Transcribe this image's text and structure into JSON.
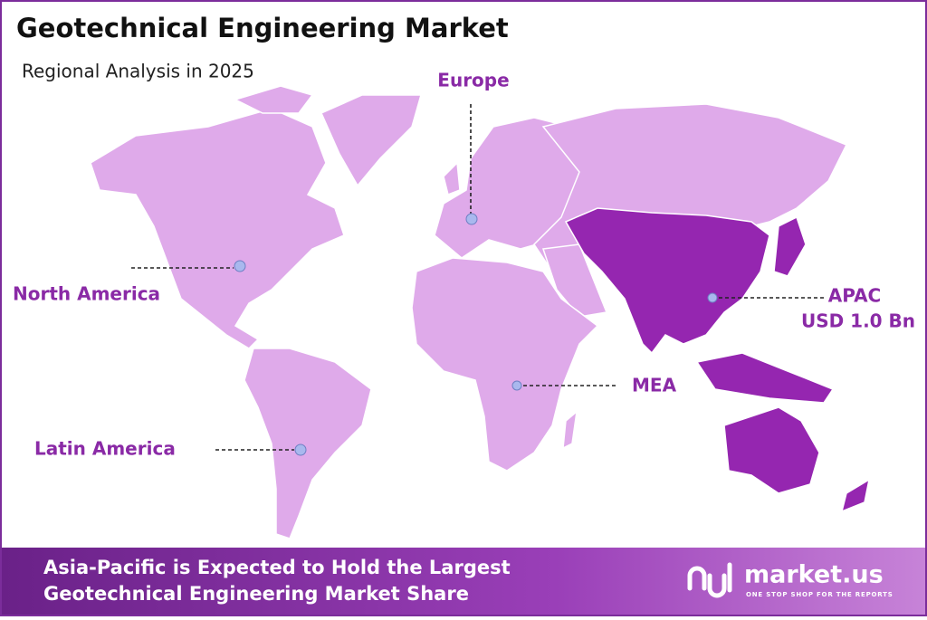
{
  "header": {
    "title": "Geotechnical Engineering Market",
    "subtitle": "Regional Analysis in 2025"
  },
  "regions": [
    {
      "label": "Europe"
    },
    {
      "label": "North America"
    },
    {
      "label": "APAC",
      "value": "USD 1.0 Bn"
    },
    {
      "label": "MEA"
    },
    {
      "label": "Latin America"
    }
  ],
  "footer": {
    "headline": [
      "Asia-Pacific is Expected to Hold the Largest",
      "Geotechnical Engineering Market Share"
    ],
    "brand": "market.us",
    "tagline": "ONE STOP SHOP FOR THE REPORTS"
  }
}
